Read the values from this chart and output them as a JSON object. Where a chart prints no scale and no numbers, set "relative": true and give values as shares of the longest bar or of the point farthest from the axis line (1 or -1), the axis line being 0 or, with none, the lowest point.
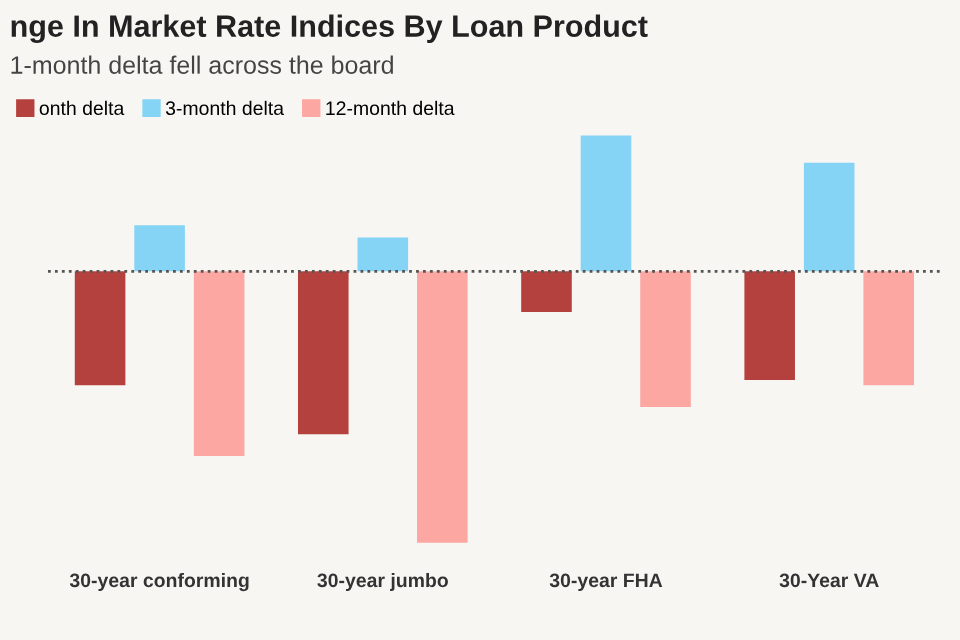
{
  "chart_data": {
    "type": "bar",
    "title": "nge In Market Rate Indices By Loan Product",
    "subtitle": "1-month delta fell across the board",
    "categories": [
      "30-year conforming",
      "30-year jumbo",
      "30-year FHA",
      "30-Year VA"
    ],
    "relative": true,
    "legend": "top left",
    "ref_lines": [
      {
        "axis": "y",
        "value": 0,
        "color": "#555555",
        "line_style": "dotted"
      }
    ],
    "series": [
      {
        "name": "onth delta",
        "color": "#b5413e",
        "values": [
          -0.42,
          -0.6,
          -0.15,
          -0.4
        ]
      },
      {
        "name": "3-month delta",
        "color": "#86d4f5",
        "values": [
          0.17,
          0.125,
          0.5,
          0.4
        ]
      },
      {
        "name": "12-month delta",
        "color": "#fca7a2",
        "values": [
          -0.68,
          -1,
          -0.5,
          -0.42
        ]
      }
    ]
  }
}
